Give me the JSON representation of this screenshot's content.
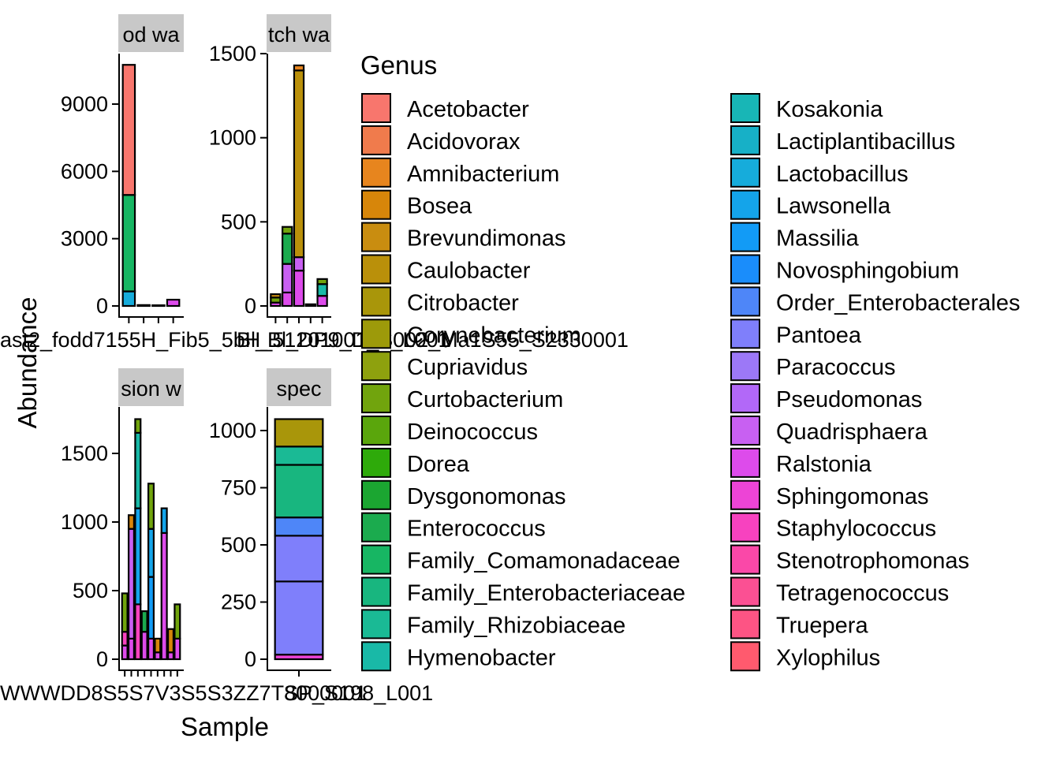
{
  "chart_data": {
    "type": "bar",
    "stacked": true,
    "xlabel": "Sample",
    "ylabel": "Abundance",
    "legend": {
      "title": "Genus",
      "placement": "right",
      "columns": 2,
      "entries": [
        {
          "name": "Acetobacter",
          "color": "#F8766D"
        },
        {
          "name": "Acidovorax",
          "color": "#F07B4C"
        },
        {
          "name": "Amnibacterium",
          "color": "#E7851E"
        },
        {
          "name": "Bosea",
          "color": "#D7860A"
        },
        {
          "name": "Brevundimonas",
          "color": "#C98D10"
        },
        {
          "name": "Caulobacter",
          "color": "#BA900A"
        },
        {
          "name": "Citrobacter",
          "color": "#A9960A"
        },
        {
          "name": "Corynebacterium",
          "color": "#9D9A0A"
        },
        {
          "name": "Cupriavidus",
          "color": "#8EA10E"
        },
        {
          "name": "Curtobacterium",
          "color": "#71A40D"
        },
        {
          "name": "Deinococcus",
          "color": "#5AA60C"
        },
        {
          "name": "Dorea",
          "color": "#2EAA0A"
        },
        {
          "name": "Dysgonomonas",
          "color": "#1BA631"
        },
        {
          "name": "Enterococcus",
          "color": "#1BAB4E"
        },
        {
          "name": "Family_Comamonadaceae",
          "color": "#17B663"
        },
        {
          "name": "Family_Enterobacteriaceae",
          "color": "#18B67F"
        },
        {
          "name": "Family_Rhizobiaceae",
          "color": "#1ABA95"
        },
        {
          "name": "Hymenobacter",
          "color": "#19B9A7"
        },
        {
          "name": "Kosakonia",
          "color": "#18B6B6"
        },
        {
          "name": "Lactiplantibacillus",
          "color": "#17B0C7"
        },
        {
          "name": "Lactobacillus",
          "color": "#16ACDB"
        },
        {
          "name": "Lawsonella",
          "color": "#14A4EA"
        },
        {
          "name": "Massilia",
          "color": "#129BF6"
        },
        {
          "name": "Novosphingobium",
          "color": "#1A8DFB"
        },
        {
          "name": "Order_Enterobacterales",
          "color": "#4E86F8"
        },
        {
          "name": "Pantoea",
          "color": "#7F7FFB"
        },
        {
          "name": "Paracoccus",
          "color": "#9C78F7"
        },
        {
          "name": "Pseudomonas",
          "color": "#B268F8"
        },
        {
          "name": "Quadrisphaera",
          "color": "#C860F2"
        },
        {
          "name": "Ralstonia",
          "color": "#DD4BEB"
        },
        {
          "name": "Sphingomonas",
          "color": "#ED44D6"
        },
        {
          "name": "Staphylococcus",
          "color": "#F742BF"
        },
        {
          "name": "Stenotrophomonas",
          "color": "#FA48A8"
        },
        {
          "name": "Tetragenococcus",
          "color": "#FB5093"
        },
        {
          "name": "Truepera",
          "color": "#FD5484"
        },
        {
          "name": "Xylophilus",
          "color": "#FF5A6E"
        }
      ]
    },
    "panels": [
      {
        "strip": "od wa",
        "ylim": [
          0,
          11000
        ],
        "yticks": [
          0,
          3000,
          6000,
          9000
        ],
        "tick_labels": [
          "0",
          "3000",
          "6000",
          "9000"
        ],
        "x_labels_overflow": "ast2_fodd7155H_Fib5_5bH_51201001_1_L001",
        "bars": [
          {
            "segments": [
              {
                "genus": "Lactobacillus",
                "value": 650
              },
              {
                "genus": "Family_Comamonadaceae",
                "value": 4300
              },
              {
                "genus": "Acetobacter",
                "value": 5800
              }
            ]
          },
          {
            "segments": [
              {
                "genus": "Enterococcus",
                "value": 40
              }
            ]
          },
          {
            "segments": [
              {
                "genus": "Enterococcus",
                "value": 30
              }
            ]
          },
          {
            "segments": [
              {
                "genus": "Ralstonia",
                "value": 280
              }
            ]
          }
        ]
      },
      {
        "strip": "tch wa",
        "ylim": [
          0,
          1550
        ],
        "yticks": [
          0,
          500,
          1000,
          1500
        ],
        "tick_labels": [
          "0",
          "500",
          "1000",
          "1500"
        ],
        "x_labels_overflow": "Bl_Bl_DP9_D_S002_Ma1S55_S2330001",
        "bars": [
          {
            "segments": [
              {
                "genus": "Ralstonia",
                "value": 20
              },
              {
                "genus": "Curtobacterium",
                "value": 30
              },
              {
                "genus": "Brevundimonas",
                "value": 20
              }
            ]
          },
          {
            "segments": [
              {
                "genus": "Ralstonia",
                "value": 80
              },
              {
                "genus": "Quadrisphaera",
                "value": 170
              },
              {
                "genus": "Enterococcus",
                "value": 180
              },
              {
                "genus": "Curtobacterium",
                "value": 40
              }
            ]
          },
          {
            "segments": [
              {
                "genus": "Ralstonia",
                "value": 210
              },
              {
                "genus": "Quadrisphaera",
                "value": 80
              },
              {
                "genus": "Caulobacter",
                "value": 1110
              },
              {
                "genus": "Amnibacterium",
                "value": 30
              }
            ]
          },
          {
            "segments": [
              {
                "genus": "Hymenobacter",
                "value": 10
              }
            ]
          },
          {
            "segments": [
              {
                "genus": "Ralstonia",
                "value": 60
              },
              {
                "genus": "Hymenobacter",
                "value": 70
              },
              {
                "genus": "Curtobacterium",
                "value": 30
              }
            ]
          }
        ]
      },
      {
        "strip": "sion w",
        "ylim": [
          0,
          1850
        ],
        "yticks": [
          0,
          500,
          1000,
          1500
        ],
        "tick_labels": [
          "0",
          "500",
          "1000",
          "1500"
        ],
        "x_labels_overflow": "WWWDD8S5S7V3S5S3ZZ7T8000001",
        "bars": [
          {
            "segments": [
              {
                "genus": "Ralstonia",
                "value": 100
              },
              {
                "genus": "Staphylococcus",
                "value": 100
              },
              {
                "genus": "Curtobacterium",
                "value": 280
              }
            ]
          },
          {
            "segments": [
              {
                "genus": "Ralstonia",
                "value": 150
              },
              {
                "genus": "Quadrisphaera",
                "value": 800
              },
              {
                "genus": "Bosea",
                "value": 100
              }
            ]
          },
          {
            "segments": [
              {
                "genus": "Staphylococcus",
                "value": 400
              },
              {
                "genus": "Lawsonella",
                "value": 700
              },
              {
                "genus": "Hymenobacter",
                "value": 550
              },
              {
                "genus": "Curtobacterium",
                "value": 100
              }
            ]
          },
          {
            "segments": [
              {
                "genus": "Ralstonia",
                "value": 200
              },
              {
                "genus": "Enterococcus",
                "value": 150
              }
            ]
          },
          {
            "segments": [
              {
                "genus": "Ralstonia",
                "value": 150
              },
              {
                "genus": "Massilia",
                "value": 450
              },
              {
                "genus": "Lawsonella",
                "value": 350
              },
              {
                "genus": "Curtobacterium",
                "value": 330
              }
            ]
          },
          {
            "segments": [
              {
                "genus": "Ralstonia",
                "value": 50
              },
              {
                "genus": "Bosea",
                "value": 100
              }
            ]
          },
          {
            "segments": [
              {
                "genus": "Ralstonia",
                "value": 920
              },
              {
                "genus": "Lawsonella",
                "value": 180
              }
            ]
          },
          {
            "segments": [
              {
                "genus": "Ralstonia",
                "value": 50
              },
              {
                "genus": "Bosea",
                "value": 170
              }
            ]
          },
          {
            "segments": [
              {
                "genus": "Ralstonia",
                "value": 150
              },
              {
                "genus": "Curtobacterium",
                "value": 250
              }
            ]
          }
        ]
      },
      {
        "strip": "spec",
        "ylim": [
          0,
          1100
        ],
        "yticks": [
          0,
          250,
          500,
          750,
          1000
        ],
        "tick_labels": [
          "0",
          "250",
          "500",
          "750",
          "1000"
        ],
        "x_labels_overflow": "SP_S198_L001",
        "bars": [
          {
            "segments": [
              {
                "genus": "Sphingomonas",
                "value": 20
              },
              {
                "genus": "Pantoea",
                "value": 320
              },
              {
                "genus": "Pantoea",
                "value": 200
              },
              {
                "genus": "Order_Enterobacterales",
                "value": 80
              },
              {
                "genus": "Family_Enterobacteriaceae",
                "value": 230
              },
              {
                "genus": "Family_Rhizobiaceae",
                "value": 80
              },
              {
                "genus": "Citrobacter",
                "value": 120
              }
            ]
          }
        ]
      }
    ]
  }
}
